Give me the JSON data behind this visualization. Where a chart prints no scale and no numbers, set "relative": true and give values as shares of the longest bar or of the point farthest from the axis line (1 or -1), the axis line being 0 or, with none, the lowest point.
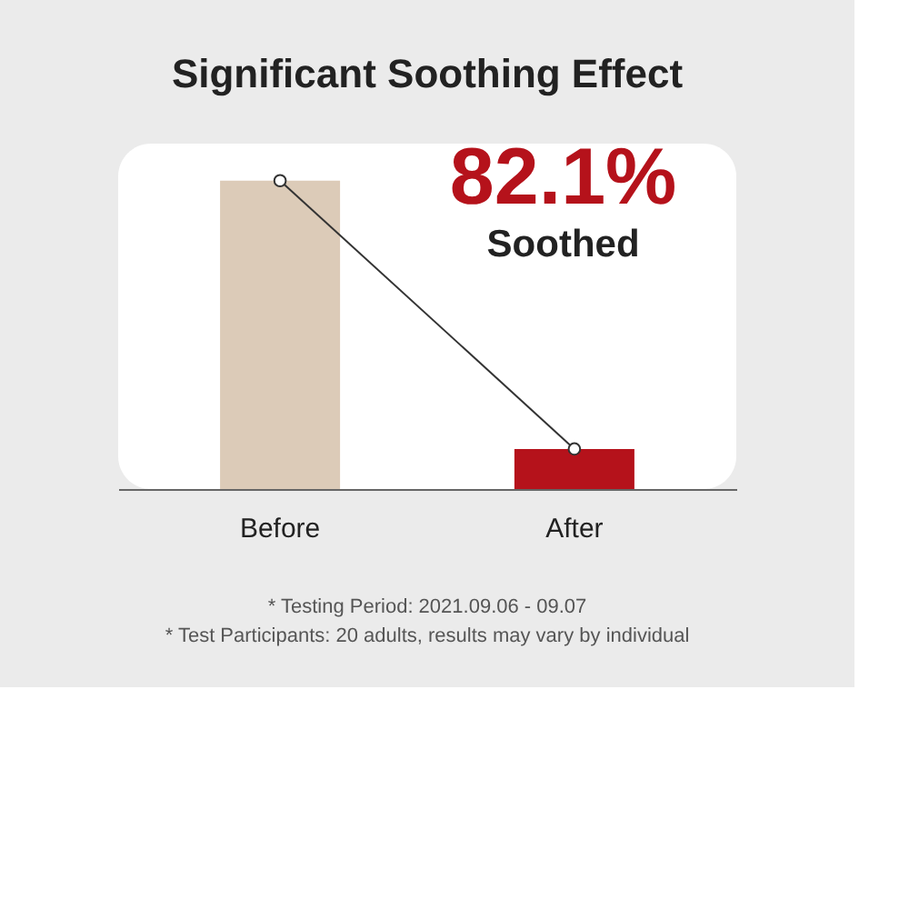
{
  "chart_data": {
    "type": "bar",
    "title": "Significant Soothing Effect",
    "categories": [
      "Before",
      "After"
    ],
    "relative": true,
    "grid": false,
    "series": [
      {
        "colors": [
          "#dccbb8",
          "#b5121b"
        ],
        "values": [
          1,
          0.13
        ]
      },
      {
        "type": "line",
        "color": "#333333",
        "marker": "circle",
        "values": [
          1,
          0.13
        ]
      }
    ],
    "annotations": [
      "82.1%",
      "Soothed",
      "* Testing Period: 2021.09.06 - 09.07",
      "* Test Participants: 20 adults, results may vary by individual"
    ]
  }
}
